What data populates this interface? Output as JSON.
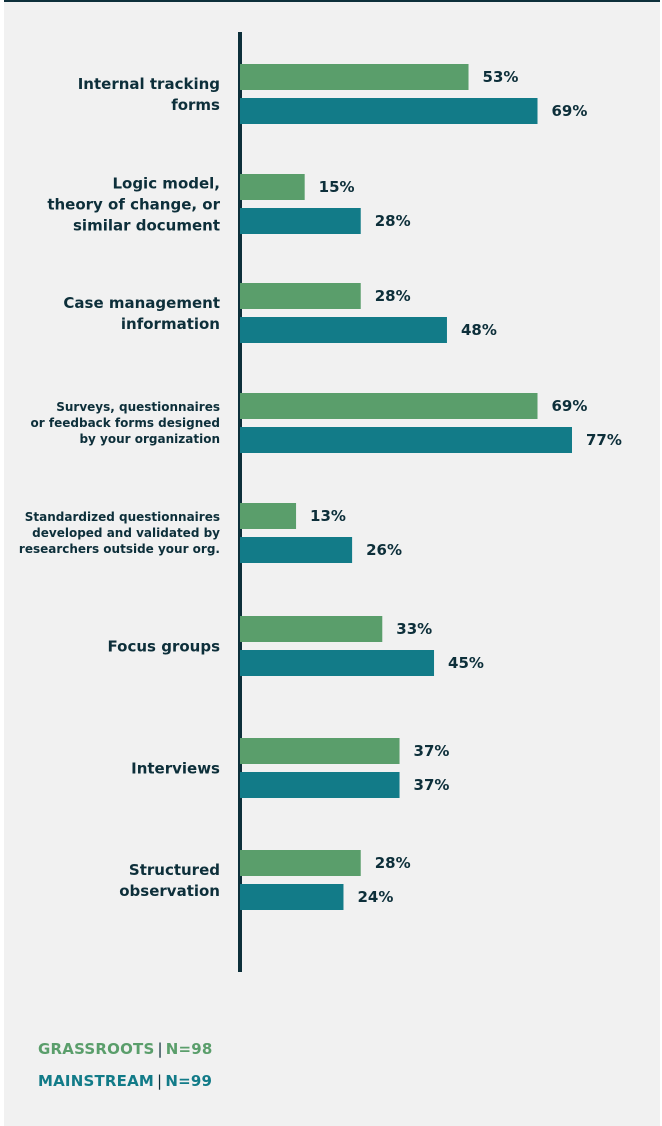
{
  "colors": {
    "grassroots": "#5a9e6b",
    "mainstream": "#127b88",
    "axis": "#0d2f3a",
    "text": "#0d2f3a",
    "background": "#f1f1f1"
  },
  "legend": {
    "grassroots_label": "GRASSROOTS",
    "grassroots_n": "N=98",
    "mainstream_label": "MAINSTREAM",
    "mainstream_n": "N=99",
    "separator": "|"
  },
  "chart_data": {
    "type": "bar",
    "orientation": "horizontal",
    "categories": [
      [
        "Internal tracking",
        "forms"
      ],
      [
        "Logic model,",
        "theory of change, or",
        "similar document"
      ],
      [
        "Case management",
        "information"
      ],
      [
        "Surveys, questionnaires",
        "or feedback forms designed",
        "by your organization"
      ],
      [
        "Standardized questionnaires",
        "developed and validated by",
        "researchers outside your org."
      ],
      [
        "Focus groups"
      ],
      [
        "Interviews"
      ],
      [
        "Structured",
        "observation"
      ]
    ],
    "series": [
      {
        "name": "GRASSROOTS",
        "values": [
          53,
          15,
          28,
          69,
          13,
          33,
          37,
          28
        ],
        "labels": [
          "53%",
          "15%",
          "28%",
          "69%",
          "13%",
          "33%",
          "37%",
          "28%"
        ]
      },
      {
        "name": "MAINSTREAM",
        "values": [
          69,
          28,
          48,
          77,
          26,
          45,
          37,
          24
        ],
        "labels": [
          "69%",
          "28%",
          "48%",
          "77%",
          "26%",
          "45%",
          "37%",
          "24%"
        ]
      }
    ],
    "xlim": [
      0,
      100
    ],
    "grid": false,
    "legend_position": "bottom-left"
  }
}
